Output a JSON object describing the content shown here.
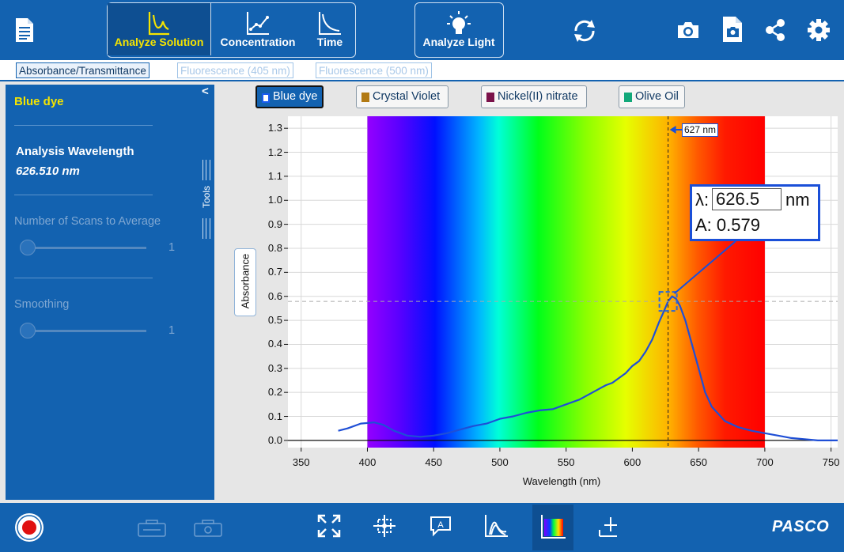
{
  "toolbar": {
    "analyze_solution": "Analyze Solution",
    "concentration": "Concentration",
    "time": "Time",
    "analyze_light": "Analyze Light",
    "brand": "PASCO"
  },
  "tabs": [
    "Absorbance/Transmittance",
    "Fluorescence (405 nm)",
    "Fluorescence (500 nm)"
  ],
  "sidebar": {
    "solution_name": "Blue dye",
    "collapse": "<",
    "tools_label": "Tools",
    "analysis_wavelength_label": "Analysis Wavelength",
    "analysis_wavelength_value": "626.510 nm",
    "scans_label": "Number of Scans to Average",
    "scans_value": "1",
    "smoothing_label": "Smoothing",
    "smoothing_value": "1"
  },
  "chips": [
    {
      "label": "Blue dye",
      "color": "#1a5cf0",
      "active": true
    },
    {
      "label": "Crystal Violet",
      "color": "#b27a14",
      "active": false
    },
    {
      "label": "Nickel(II) nitrate",
      "color": "#7a124a",
      "active": false
    },
    {
      "label": "Olive Oil",
      "color": "#12a87a",
      "active": false
    }
  ],
  "readout": {
    "lambda_label": "λ:",
    "lambda_value": "626.5",
    "unit": "nm",
    "absorbance_label": "A: 0.579"
  },
  "marker_label": "627 nm",
  "chart_data": {
    "type": "line",
    "xlabel": "Wavelength (nm)",
    "ylabel": "Absorbance",
    "xlim": [
      340,
      755
    ],
    "ylim": [
      -0.03,
      1.35
    ],
    "x_ticks": [
      350,
      400,
      450,
      500,
      550,
      600,
      650,
      700,
      750
    ],
    "y_ticks": [
      0.0,
      0.1,
      0.2,
      0.3,
      0.4,
      0.5,
      0.6,
      0.7,
      0.8,
      0.9,
      1.0,
      1.1,
      1.2,
      1.3
    ],
    "spectrum_band_nm": [
      400,
      700
    ],
    "marker_wavelength": 627,
    "marker_absorbance": 0.579,
    "series": [
      {
        "name": "Blue dye",
        "color": "#1f4fd6",
        "x": [
          378,
          385,
          395,
          405,
          412,
          420,
          430,
          440,
          450,
          460,
          470,
          480,
          490,
          500,
          510,
          520,
          530,
          540,
          550,
          560,
          570,
          580,
          585,
          590,
          595,
          600,
          605,
          610,
          615,
          620,
          624,
          627,
          630,
          633,
          636,
          640,
          645,
          650,
          655,
          660,
          670,
          680,
          690,
          700,
          710,
          720,
          730,
          740,
          755
        ],
        "y": [
          0.04,
          0.05,
          0.07,
          0.075,
          0.065,
          0.04,
          0.02,
          0.015,
          0.02,
          0.03,
          0.045,
          0.06,
          0.07,
          0.09,
          0.1,
          0.115,
          0.125,
          0.13,
          0.15,
          0.17,
          0.2,
          0.23,
          0.24,
          0.26,
          0.28,
          0.31,
          0.33,
          0.37,
          0.42,
          0.49,
          0.54,
          0.579,
          0.6,
          0.59,
          0.56,
          0.5,
          0.4,
          0.3,
          0.2,
          0.14,
          0.08,
          0.055,
          0.04,
          0.03,
          0.02,
          0.01,
          0.005,
          0.0,
          0.0
        ]
      }
    ]
  }
}
